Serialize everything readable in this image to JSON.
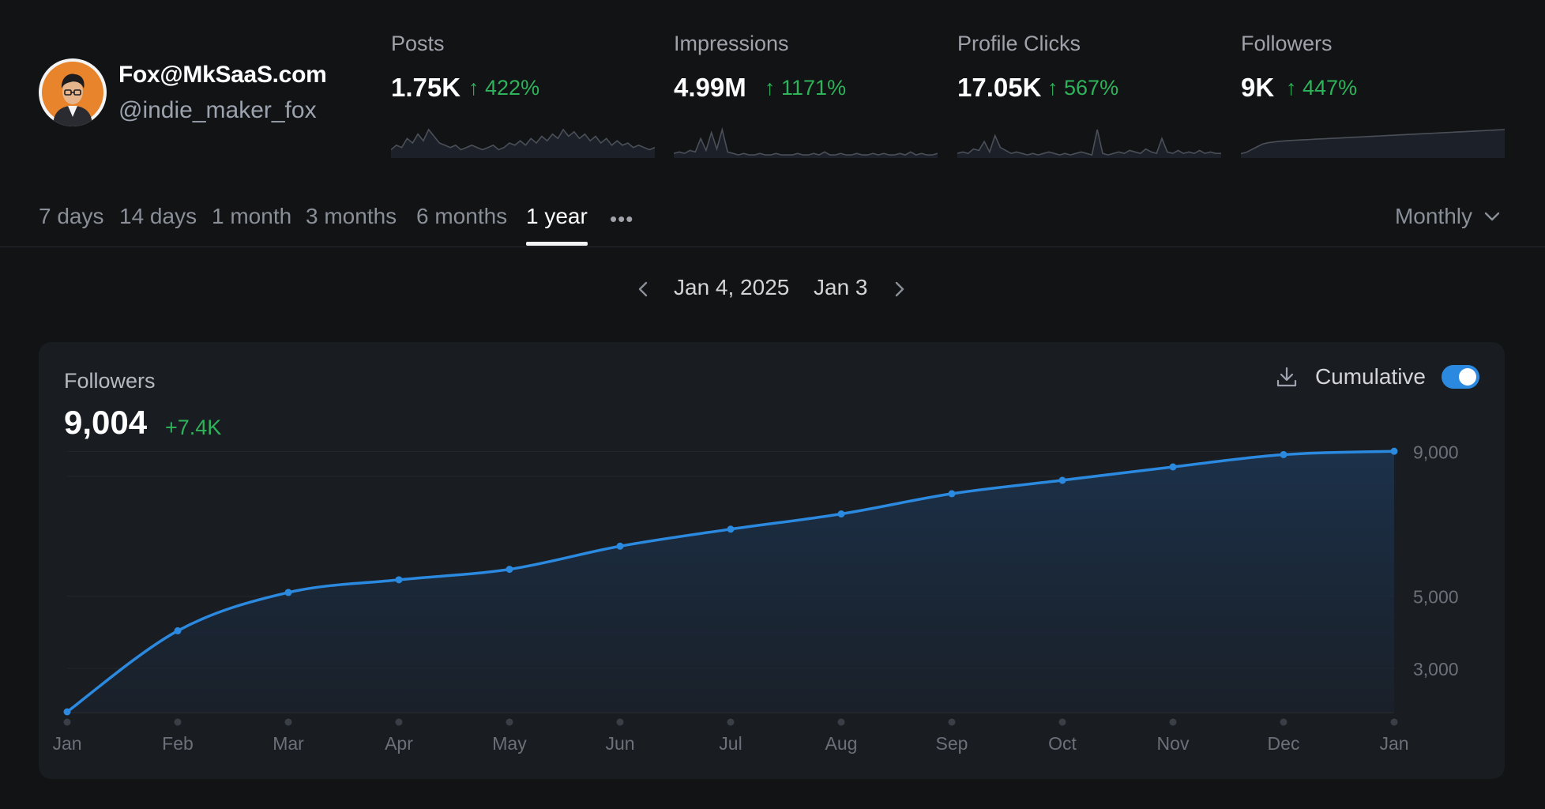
{
  "profile": {
    "name": "Fox@MkSaaS.com",
    "handle": "@indie_maker_fox",
    "avatar_icon": "avatar-portrait-icon"
  },
  "stats": [
    {
      "label": "Posts",
      "value": "1.75K",
      "change": "422%",
      "sparkline": [
        3,
        5,
        4,
        8,
        6,
        10,
        7,
        12,
        9,
        6,
        5,
        4,
        5,
        3,
        4,
        5,
        4,
        3,
        4,
        5,
        3,
        4,
        6,
        5,
        7,
        5,
        8,
        6,
        9,
        7,
        10,
        8,
        12,
        9,
        11,
        8,
        10,
        7,
        9,
        6,
        8,
        5,
        7,
        5,
        6,
        4,
        5,
        4,
        3,
        4
      ]
    },
    {
      "label": "Impressions",
      "value": "4.99M",
      "change": "1171%",
      "sparkline": [
        2,
        3,
        2,
        4,
        3,
        12,
        4,
        16,
        5,
        18,
        3,
        2,
        1,
        2,
        1,
        1,
        2,
        1,
        1,
        2,
        1,
        1,
        1,
        2,
        1,
        1,
        2,
        1,
        3,
        1,
        1,
        2,
        1,
        1,
        2,
        1,
        1,
        2,
        1,
        2,
        1,
        1,
        2,
        1,
        3,
        1,
        2,
        1,
        1,
        2
      ]
    },
    {
      "label": "Profile Clicks",
      "value": "17.05K",
      "change": "567%",
      "sparkline": [
        2,
        3,
        2,
        5,
        4,
        10,
        3,
        14,
        6,
        4,
        2,
        3,
        2,
        1,
        2,
        1,
        2,
        3,
        2,
        1,
        2,
        1,
        2,
        3,
        2,
        1,
        18,
        2,
        1,
        2,
        3,
        2,
        4,
        3,
        2,
        5,
        3,
        2,
        12,
        3,
        2,
        4,
        2,
        3,
        2,
        4,
        2,
        3,
        2,
        2
      ]
    },
    {
      "label": "Followers",
      "value": "9K",
      "change": "447%",
      "sparkline": [
        2,
        3,
        5,
        7,
        9,
        10,
        10.5,
        11,
        11.3,
        11.6,
        11.8,
        12,
        12.2,
        12.4,
        12.6,
        12.8,
        13,
        13.2,
        13.4,
        13.6,
        13.8,
        14,
        14.2,
        14.4,
        14.6,
        14.8,
        15,
        15.2,
        15.4,
        15.6,
        15.8,
        16,
        16.2,
        16.4,
        16.6,
        16.8,
        17,
        17.2,
        17.4,
        17.6,
        17.8,
        18,
        18.2,
        18.4,
        18.6,
        18.8,
        19,
        19.2,
        19.4,
        19.6
      ]
    }
  ],
  "tabs": {
    "items": [
      "7 days",
      "14 days",
      "1 month",
      "3 months",
      "6 months",
      "1 year"
    ],
    "active": "1 year",
    "more_icon": "more-horizontal-icon",
    "interval": "Monthly",
    "interval_icon": "chevron-down-icon"
  },
  "date_range": {
    "start": "Jan 4, 2025",
    "end": "Jan 3",
    "prev_icon": "chevron-left-icon",
    "next_icon": "chevron-right-icon"
  },
  "card": {
    "title": "Followers",
    "value": "9,004",
    "delta": "+7.4K",
    "download_icon": "download-icon",
    "cumulative_label": "Cumulative",
    "cumulative_on": true
  },
  "chart_data": {
    "type": "area",
    "title": "Followers",
    "x": [
      "Jan",
      "Feb",
      "Mar",
      "Apr",
      "May",
      "Jun",
      "Jul",
      "Aug",
      "Sep",
      "Oct",
      "Nov",
      "Dec",
      "Jan"
    ],
    "series": [
      {
        "values": [
          1800,
          4040,
          5100,
          5450,
          5740,
          6380,
          6850,
          7270,
          7830,
          8200,
          8570,
          8910,
          9004
        ]
      }
    ],
    "y_ticks": [
      "9,000",
      "5,000",
      "3,000"
    ],
    "y_tick_values": [
      9000,
      5000,
      3000
    ],
    "ylim": [
      1800,
      9400
    ],
    "grid": true,
    "color": "#2b8ae0",
    "fill_color": "#1a2a3e"
  },
  "colors": {
    "background": "#111315",
    "card": "#191c20",
    "accent": "#2b8ae0",
    "positive": "#2fb35a"
  }
}
